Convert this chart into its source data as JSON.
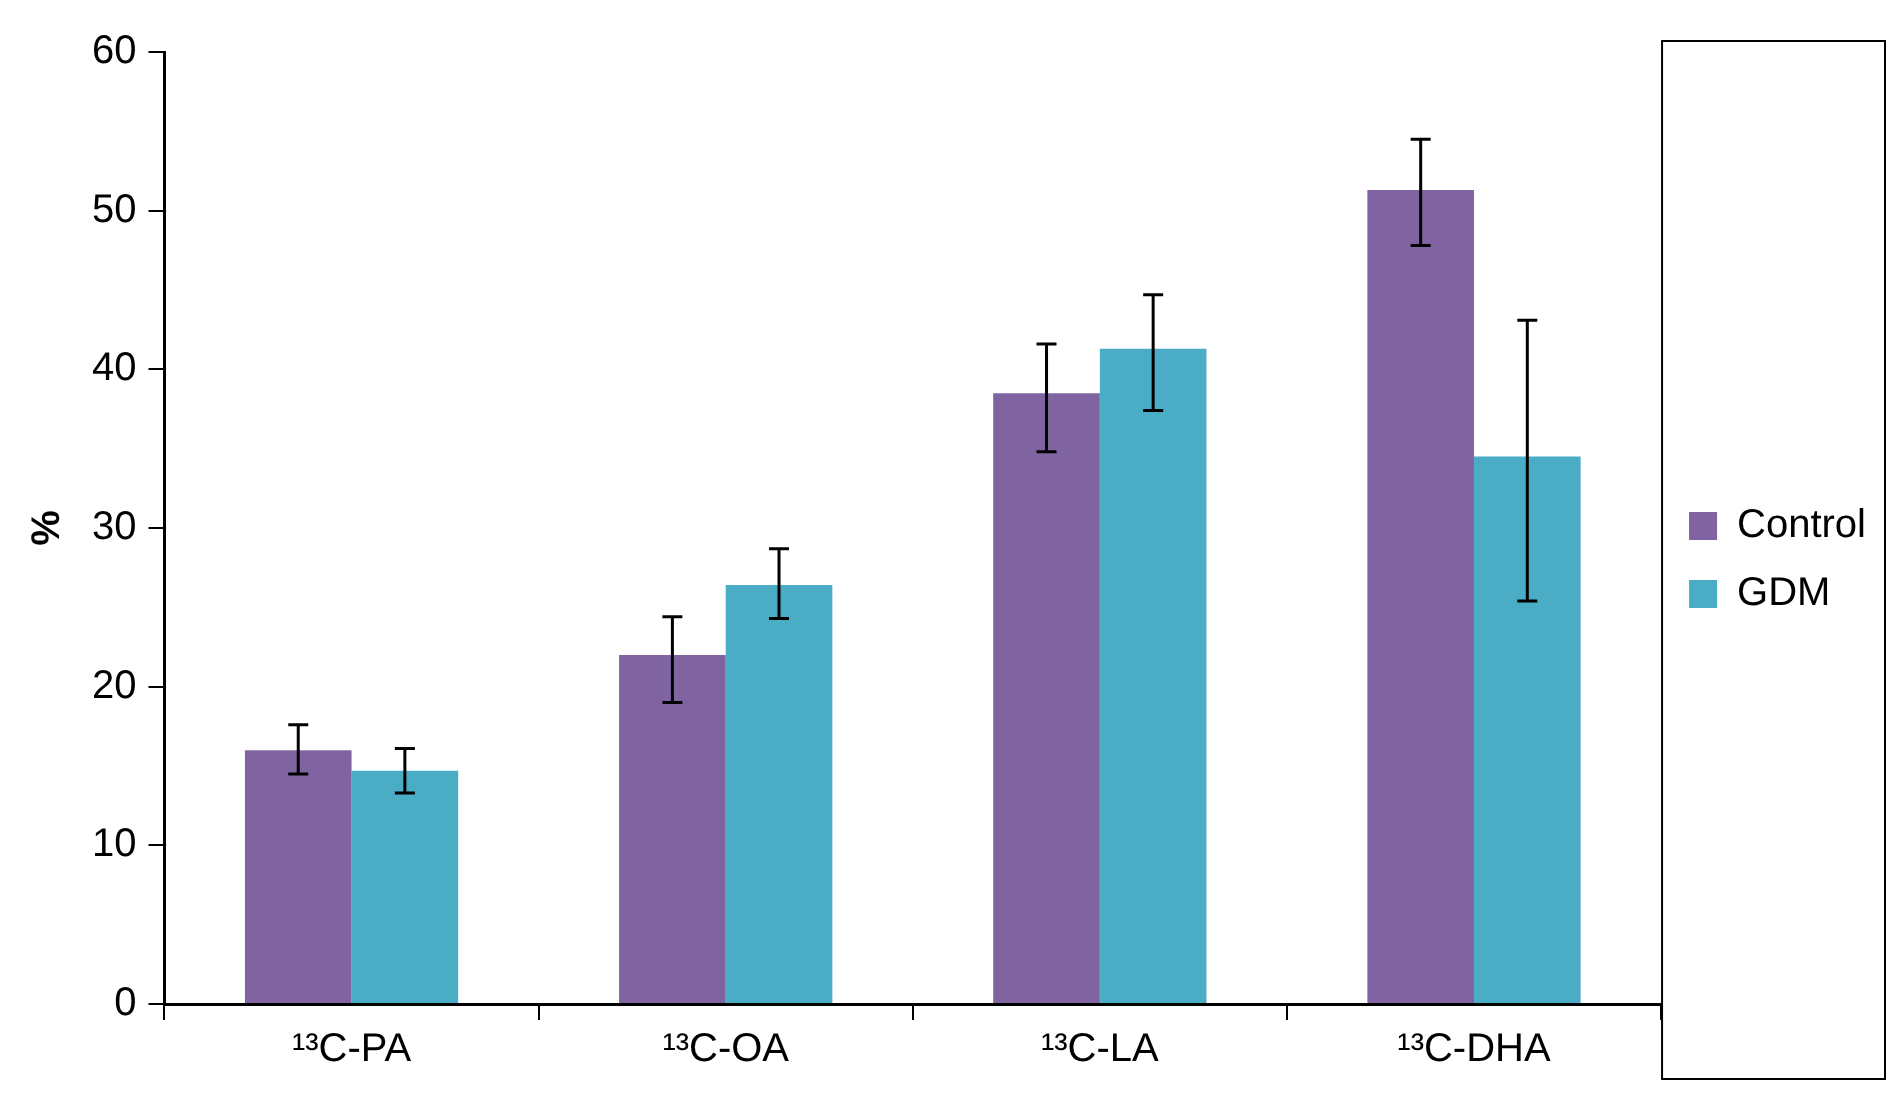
{
  "chart_data": {
    "type": "bar",
    "ylabel": "%",
    "categories": [
      "¹³C-PA",
      "¹³C-OA",
      "¹³C-LA",
      "¹³C-DHA"
    ],
    "series": [
      {
        "name": "Control",
        "color": "#8064a2",
        "values": [
          16.0,
          22.0,
          38.5,
          51.3
        ],
        "errors": [
          [
            14.5,
            17.6
          ],
          [
            19.0,
            24.4
          ],
          [
            34.8,
            41.6
          ],
          [
            47.8,
            54.5
          ]
        ]
      },
      {
        "name": "GDM",
        "color": "#4bacc6",
        "values": [
          14.7,
          26.4,
          41.3,
          34.5
        ],
        "errors": [
          [
            13.3,
            16.1
          ],
          [
            24.3,
            28.7
          ],
          [
            37.4,
            44.7
          ],
          [
            25.4,
            43.1
          ]
        ]
      }
    ],
    "ylim": [
      0,
      60
    ],
    "yticks": [
      0,
      10,
      20,
      30,
      40,
      50,
      60
    ],
    "grid": false,
    "legend": "right"
  }
}
